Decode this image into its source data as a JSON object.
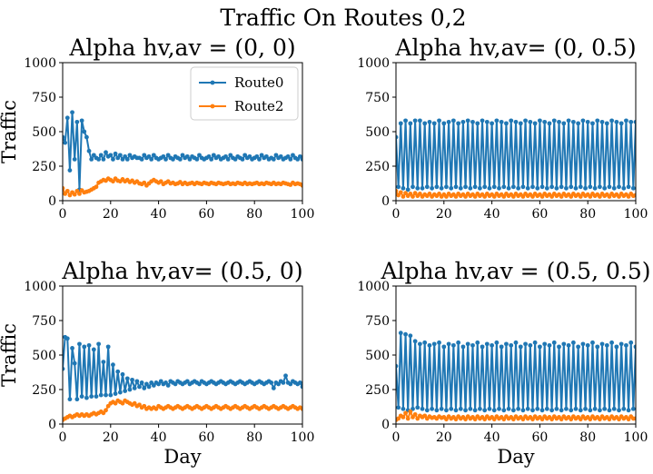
{
  "figure": {
    "suptitle": "Traffic On Routes 0,2",
    "legend": {
      "location": "upper right",
      "panel": 0
    }
  },
  "colors": {
    "Route0": "#1f77b4",
    "Route2": "#ff7f0e",
    "axes": "#000000",
    "background": "#ffffff"
  },
  "chart_data": [
    {
      "type": "line",
      "title": "Alpha hv,av = (0, 0)",
      "xlabel": "",
      "ylabel": "Traffic",
      "xlim": [
        0,
        100
      ],
      "ylim": [
        0,
        1000
      ],
      "xticks": [
        "0",
        "20",
        "40",
        "60",
        "80",
        "100"
      ],
      "yticks": [
        "0",
        "250",
        "500",
        "750",
        "1000"
      ],
      "grid": false,
      "legend_position": "upper right",
      "series": [
        {
          "name": "Route0",
          "color": "#1f77b4",
          "values": [
            460,
            420,
            600,
            220,
            640,
            300,
            570,
            80,
            580,
            500,
            460,
            360,
            300,
            330,
            310,
            300,
            330,
            300,
            350,
            320,
            330,
            300,
            340,
            310,
            330,
            300,
            320,
            300,
            330,
            310,
            320,
            310,
            310,
            300,
            330,
            310,
            320,
            300,
            330,
            310,
            300,
            310,
            320,
            300,
            330,
            310,
            300,
            320,
            310,
            300,
            330,
            310,
            320,
            300,
            320,
            310,
            300,
            330,
            310,
            300,
            310,
            320,
            300,
            330,
            310,
            320,
            300,
            310,
            320,
            300,
            330,
            310,
            300,
            320,
            310,
            300,
            330,
            310,
            320,
            300,
            310,
            320,
            300,
            330,
            310,
            320,
            300,
            310,
            300,
            330,
            310,
            320,
            300,
            310,
            320,
            300,
            330,
            310,
            300,
            320,
            300
          ]
        },
        {
          "name": "Route2",
          "color": "#ff7f0e",
          "values": [
            90,
            50,
            70,
            40,
            60,
            45,
            70,
            50,
            75,
            60,
            65,
            70,
            80,
            90,
            100,
            130,
            140,
            150,
            145,
            160,
            150,
            140,
            160,
            145,
            140,
            155,
            140,
            150,
            135,
            145,
            130,
            140,
            125,
            120,
            130,
            110,
            125,
            140,
            150,
            140,
            130,
            140,
            120,
            130,
            140,
            125,
            130,
            120,
            125,
            135,
            120,
            130,
            120,
            125,
            130,
            120,
            130,
            125,
            120,
            130,
            125,
            120,
            130,
            125,
            120,
            130,
            125,
            120,
            125,
            130,
            120,
            125,
            120,
            130,
            125,
            120,
            130,
            120,
            125,
            120,
            125,
            130,
            120,
            125,
            120,
            130,
            125,
            120,
            130,
            120,
            125,
            120,
            130,
            125,
            120,
            115,
            130,
            120,
            125,
            120,
            110
          ]
        }
      ]
    },
    {
      "type": "line",
      "title": "Alpha hv,av= (0, 0.5)",
      "xlabel": "",
      "ylabel": "",
      "xlim": [
        0,
        100
      ],
      "ylim": [
        0,
        1000
      ],
      "xticks": [
        "0",
        "20",
        "40",
        "60",
        "80",
        "100"
      ],
      "yticks": [
        "0",
        "250",
        "500",
        "750",
        "1000"
      ],
      "grid": false,
      "series": [
        {
          "name": "Route0",
          "color": "#1f77b4",
          "values": [
            460,
            100,
            560,
            90,
            580,
            80,
            560,
            100,
            580,
            90,
            580,
            90,
            560,
            100,
            570,
            90,
            560,
            100,
            580,
            90,
            560,
            100,
            570,
            90,
            580,
            100,
            560,
            90,
            570,
            100,
            580,
            90,
            570,
            100,
            560,
            90,
            580,
            100,
            570,
            90,
            560,
            100,
            580,
            90,
            570,
            100,
            560,
            90,
            580,
            100,
            570,
            90,
            560,
            100,
            580,
            90,
            570,
            100,
            560,
            90,
            580,
            100,
            570,
            90,
            560,
            100,
            580,
            90,
            570,
            100,
            560,
            90,
            580,
            100,
            570,
            90,
            560,
            100,
            580,
            90,
            570,
            100,
            560,
            90,
            580,
            100,
            570,
            90,
            560,
            100,
            580,
            90,
            570,
            100,
            560,
            90,
            580,
            100,
            570,
            90,
            570
          ]
        },
        {
          "name": "Route2",
          "color": "#ff7f0e",
          "values": [
            70,
            40,
            60,
            30,
            55,
            35,
            50,
            30,
            55,
            35,
            50,
            30,
            45,
            35,
            50,
            30,
            45,
            35,
            50,
            30,
            45,
            30,
            50,
            35,
            45,
            30,
            50,
            35,
            45,
            30,
            50,
            35,
            45,
            30,
            50,
            35,
            45,
            30,
            50,
            35,
            45,
            30,
            50,
            35,
            45,
            30,
            50,
            35,
            45,
            30,
            50,
            35,
            45,
            30,
            50,
            35,
            45,
            30,
            50,
            35,
            45,
            30,
            50,
            35,
            45,
            30,
            50,
            35,
            45,
            30,
            50,
            35,
            45,
            30,
            50,
            35,
            45,
            30,
            50,
            35,
            45,
            30,
            50,
            35,
            45,
            30,
            50,
            35,
            45,
            30,
            50,
            35,
            45,
            30,
            50,
            35,
            45,
            30,
            50,
            35,
            40
          ]
        }
      ]
    },
    {
      "type": "line",
      "title": "Alpha hv,av= (0.5, 0)",
      "xlabel": "Day",
      "ylabel": "Traffic",
      "xlim": [
        0,
        100
      ],
      "ylim": [
        0,
        1000
      ],
      "xticks": [
        "0",
        "20",
        "40",
        "60",
        "80",
        "100"
      ],
      "yticks": [
        "0",
        "250",
        "500",
        "750",
        "1000"
      ],
      "grid": false,
      "series": [
        {
          "name": "Route0",
          "color": "#1f77b4",
          "values": [
            400,
            630,
            620,
            180,
            550,
            440,
            180,
            580,
            200,
            560,
            190,
            570,
            200,
            540,
            200,
            580,
            210,
            450,
            210,
            560,
            210,
            430,
            220,
            380,
            230,
            360,
            240,
            330,
            250,
            320,
            260,
            310,
            270,
            300,
            260,
            290,
            270,
            300,
            280,
            300,
            290,
            310,
            290,
            300,
            280,
            310,
            300,
            290,
            310,
            300,
            290,
            300,
            310,
            290,
            300,
            310,
            300,
            290,
            310,
            300,
            290,
            300,
            310,
            300,
            290,
            300,
            310,
            300,
            290,
            300,
            310,
            300,
            290,
            300,
            310,
            300,
            290,
            300,
            310,
            300,
            290,
            300,
            310,
            300,
            290,
            300,
            310,
            300,
            260,
            300,
            290,
            310,
            300,
            350,
            300,
            290,
            310,
            300,
            290,
            300,
            270
          ]
        },
        {
          "name": "Route2",
          "color": "#ff7f0e",
          "values": [
            30,
            40,
            50,
            60,
            50,
            60,
            70,
            60,
            70,
            60,
            70,
            60,
            70,
            80,
            70,
            80,
            90,
            80,
            100,
            130,
            150,
            160,
            150,
            170,
            160,
            150,
            170,
            160,
            150,
            140,
            150,
            130,
            140,
            120,
            130,
            110,
            120,
            110,
            120,
            110,
            130,
            120,
            110,
            120,
            130,
            120,
            110,
            120,
            130,
            120,
            110,
            120,
            130,
            120,
            110,
            120,
            130,
            120,
            110,
            120,
            130,
            120,
            110,
            120,
            130,
            120,
            110,
            120,
            130,
            120,
            110,
            120,
            130,
            120,
            110,
            120,
            130,
            120,
            110,
            120,
            130,
            120,
            110,
            120,
            130,
            120,
            110,
            120,
            130,
            120,
            110,
            120,
            130,
            120,
            110,
            120,
            130,
            120,
            110,
            120,
            110
          ]
        }
      ]
    },
    {
      "type": "line",
      "title": "Alpha hv,av = (0.5, 0.5)",
      "xlabel": "Day",
      "ylabel": "",
      "xlim": [
        0,
        100
      ],
      "ylim": [
        0,
        1000
      ],
      "xticks": [
        "0",
        "20",
        "40",
        "60",
        "80",
        "100"
      ],
      "yticks": [
        "0",
        "250",
        "500",
        "750",
        "1000"
      ],
      "grid": false,
      "series": [
        {
          "name": "Route0",
          "color": "#1f77b4",
          "values": [
            420,
            120,
            660,
            110,
            650,
            100,
            640,
            110,
            600,
            120,
            580,
            110,
            590,
            100,
            570,
            110,
            580,
            100,
            590,
            110,
            560,
            100,
            580,
            110,
            570,
            100,
            590,
            110,
            560,
            100,
            580,
            110,
            570,
            100,
            590,
            110,
            560,
            100,
            580,
            110,
            570,
            100,
            590,
            110,
            560,
            100,
            580,
            110,
            570,
            100,
            590,
            110,
            560,
            100,
            580,
            110,
            570,
            100,
            590,
            110,
            560,
            100,
            580,
            110,
            570,
            100,
            590,
            110,
            560,
            100,
            580,
            110,
            570,
            100,
            590,
            110,
            560,
            100,
            580,
            110,
            570,
            100,
            590,
            110,
            560,
            100,
            580,
            110,
            570,
            100,
            590,
            110,
            560,
            100,
            580,
            110,
            570,
            100,
            590,
            110,
            560
          ]
        },
        {
          "name": "Route2",
          "color": "#ff7f0e",
          "values": [
            30,
            40,
            60,
            50,
            80,
            40,
            90,
            50,
            70,
            40,
            60,
            50,
            60,
            40,
            55,
            45,
            50,
            40,
            55,
            45,
            50,
            35,
            55,
            40,
            50,
            35,
            55,
            40,
            50,
            35,
            55,
            40,
            50,
            35,
            55,
            40,
            50,
            35,
            55,
            40,
            50,
            35,
            55,
            40,
            50,
            35,
            55,
            40,
            50,
            35,
            55,
            40,
            50,
            35,
            55,
            40,
            50,
            35,
            55,
            40,
            50,
            35,
            55,
            40,
            50,
            35,
            55,
            40,
            50,
            35,
            55,
            40,
            50,
            35,
            55,
            40,
            50,
            35,
            55,
            40,
            50,
            35,
            55,
            40,
            50,
            35,
            55,
            40,
            50,
            35,
            55,
            40,
            50,
            35,
            55,
            40,
            50,
            35,
            55,
            40,
            40
          ]
        }
      ]
    }
  ]
}
